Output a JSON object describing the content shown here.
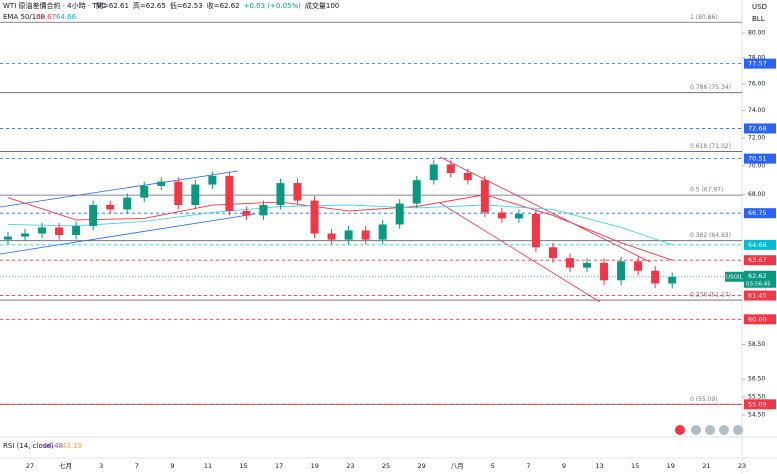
{
  "chart_data": {
    "type": "candlestick",
    "legend_lines": [
      "WTI 原油差價合約 · 4小時 · TVC",
      "開=62.61",
      "高=62.65",
      "低=62.53",
      "收=62.62",
      "+0.03 (+0.05%)",
      "成交量100"
    ],
    "ema_legend": {
      "title": "EMA 50/100",
      "values": [
        63.67,
        64.66
      ]
    },
    "currency": "USD",
    "unit": "BLL",
    "log_scale": true,
    "ylim": [
      53.31,
      82.69
    ],
    "yticks": [
      {
        "value": 80,
        "label": "80.00"
      },
      {
        "value": 78,
        "label": "78.00"
      },
      {
        "value": 76,
        "label": "76.00"
      },
      {
        "value": 74,
        "label": "74.00"
      },
      {
        "value": 72,
        "label": "72.00"
      },
      {
        "value": 70,
        "label": "70.00"
      },
      {
        "value": 68,
        "label": "68.00"
      },
      {
        "value": 58.5,
        "label": "58.50"
      },
      {
        "value": 56.5,
        "label": "56.50"
      },
      {
        "value": 55.5,
        "label": "55.50"
      },
      {
        "value": 54.5,
        "label": "54.50"
      }
    ],
    "up_color": "#089981",
    "down_color": "#f23645",
    "open": [
      65.0,
      65.2,
      65.4,
      65.8,
      65.3,
      65.9,
      67.3,
      67.0,
      67.8,
      68.6,
      68.9,
      67.3,
      68.7,
      69.3,
      66.9,
      66.6,
      67.3,
      68.8,
      67.6,
      65.4,
      65.0,
      65.6,
      65.0,
      66.0,
      67.4,
      69.0,
      70.1,
      69.5,
      69.0,
      66.8,
      66.4,
      66.7,
      64.5,
      63.8,
      63.2,
      63.5,
      62.4,
      63.6,
      63.0,
      62.2
    ],
    "high": [
      65.5,
      65.7,
      66.1,
      66.1,
      66.2,
      67.6,
      67.6,
      68.1,
      68.9,
      69.2,
      69.2,
      69.0,
      69.6,
      69.6,
      67.2,
      67.6,
      69.1,
      69.1,
      67.9,
      65.7,
      65.9,
      65.9,
      66.3,
      67.7,
      69.3,
      70.4,
      70.4,
      69.8,
      69.3,
      67.1,
      67.0,
      67.0,
      64.8,
      64.1,
      63.8,
      63.8,
      63.9,
      63.9,
      63.3,
      62.9
    ],
    "low": [
      64.7,
      64.9,
      65.1,
      65.0,
      65.0,
      65.6,
      66.7,
      66.7,
      67.5,
      68.3,
      67.0,
      67.0,
      68.4,
      66.6,
      66.3,
      66.3,
      67.0,
      67.3,
      65.1,
      64.7,
      64.7,
      64.7,
      64.7,
      65.7,
      67.1,
      68.7,
      69.2,
      68.7,
      66.5,
      66.1,
      66.1,
      64.2,
      63.5,
      62.9,
      62.9,
      62.1,
      62.1,
      62.7,
      61.9,
      61.9
    ],
    "close": [
      65.2,
      65.4,
      65.8,
      65.3,
      65.9,
      67.3,
      67.0,
      67.8,
      68.6,
      68.9,
      67.3,
      68.7,
      69.3,
      66.9,
      66.6,
      67.3,
      68.8,
      67.6,
      65.4,
      65.0,
      65.6,
      65.0,
      66.0,
      67.4,
      69.0,
      70.1,
      69.5,
      69.0,
      66.8,
      66.4,
      66.7,
      64.5,
      63.8,
      63.2,
      63.5,
      62.4,
      63.6,
      63.0,
      62.2,
      62.62
    ],
    "ema_x": [
      0,
      4,
      8,
      12,
      16,
      20,
      24,
      28,
      32,
      36,
      39
    ],
    "ema": [
      {
        "name": "EMA 50",
        "color": "#f23645",
        "values": [
          67.8,
          66.3,
          66.4,
          67.3,
          67.5,
          66.9,
          67.2,
          68.0,
          66.6,
          64.8,
          63.67
        ]
      },
      {
        "name": "EMA 100",
        "color": "#4dd0e1",
        "values": [
          66.0,
          65.9,
          66.2,
          66.8,
          67.2,
          67.3,
          67.1,
          67.3,
          67.0,
          65.8,
          64.66
        ]
      }
    ],
    "fib_levels": [
      {
        "value": 80.86,
        "label": "1 (80.86)"
      },
      {
        "value": 75.34,
        "label": "0.786 (75.34)"
      },
      {
        "value": 71.02,
        "label": "0.618 (71.02)"
      },
      {
        "value": 67.97,
        "label": "0.5 (67.97)"
      },
      {
        "value": 64.93,
        "label": "0.382 (64.93)"
      },
      {
        "value": 61.17,
        "label": "0.236 (61.17)"
      },
      {
        "value": 55.09,
        "label": "0 (55.09)"
      }
    ],
    "price_tags": [
      {
        "value": 77.57,
        "color": "#2962ff"
      },
      {
        "value": 72.68,
        "color": "#2962ff"
      },
      {
        "value": 70.51,
        "color": "#2962ff"
      },
      {
        "value": 66.75,
        "color": "#2962ff"
      },
      {
        "value": 64.66,
        "color": "#00bcd4"
      },
      {
        "value": 63.67,
        "color": "#f23645"
      },
      {
        "value": 61.45,
        "color": "#f23645"
      },
      {
        "value": 60,
        "label": "60.00",
        "color": "#f23645"
      },
      {
        "value": 55.09,
        "color": "#f23645"
      }
    ],
    "last_price": {
      "symbol": "USOIL",
      "value": 62.62,
      "countdown": "03:56:45",
      "color": "#089981"
    },
    "rsi_legend": {
      "title": "RSI (14, close)",
      "values": [
        44.48,
        43.19
      ]
    },
    "time_labels": [
      "27",
      "七月",
      "3",
      "7",
      "9",
      "11",
      "15",
      "17",
      "19",
      "23",
      "25",
      "29",
      "八月",
      "5",
      "7",
      "9",
      "13",
      "15",
      "19",
      "21",
      "23"
    ]
  }
}
